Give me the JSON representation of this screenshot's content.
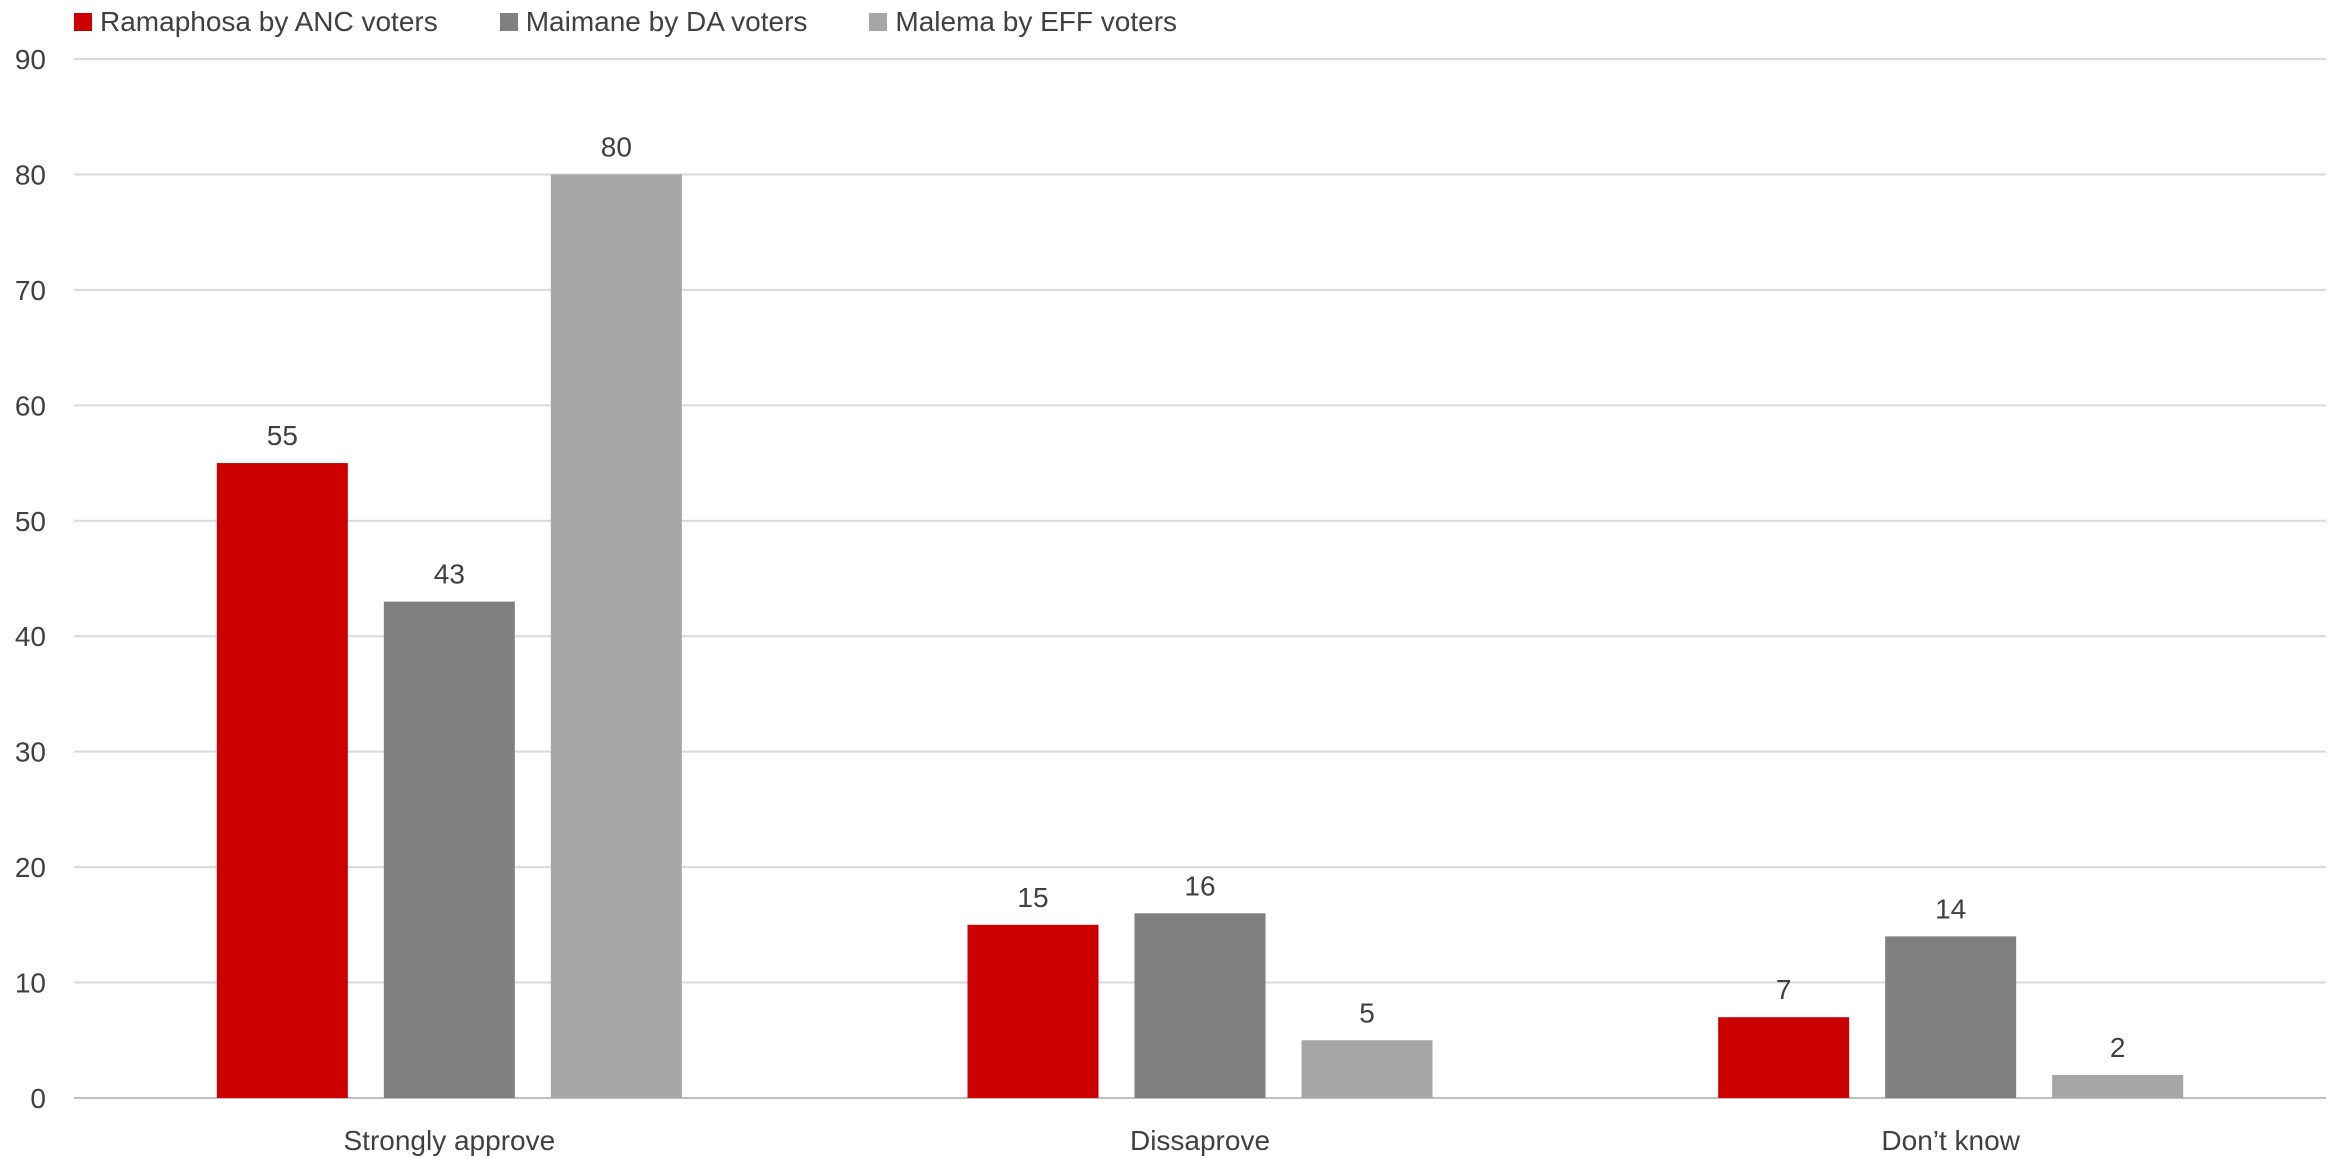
{
  "chart_data": {
    "type": "bar",
    "title": "",
    "xlabel": "",
    "ylabel": "",
    "categories": [
      "Strongly approve",
      "Dissaprove",
      "Don’t know"
    ],
    "series": [
      {
        "name": "Ramaphosa by ANC voters",
        "values": [
          55,
          15,
          7
        ],
        "color": "#cc0000"
      },
      {
        "name": "Maimane by DA voters",
        "values": [
          43,
          16,
          14
        ],
        "color": "#808080"
      },
      {
        "name": "Malema by EFF voters",
        "values": [
          80,
          5,
          2
        ],
        "color": "#a6a6a6"
      }
    ],
    "ylim": [
      0,
      90
    ],
    "yticks": [
      0,
      10,
      20,
      30,
      40,
      50,
      60,
      70,
      80,
      90
    ],
    "grid": true,
    "legend_position": "top-left",
    "colors": {
      "gridline": "#d9d9d9",
      "axis": "#bfbfbf",
      "text": "#404040"
    }
  }
}
